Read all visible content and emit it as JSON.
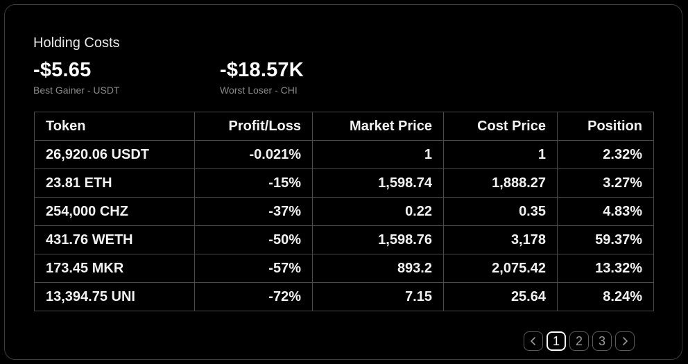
{
  "title": "Holding Costs",
  "stats": {
    "best": {
      "value": "-$5.65",
      "label": "Best Gainer - USDT"
    },
    "worst": {
      "value": "-$18.57K",
      "label": "Worst Loser - CHI"
    }
  },
  "table": {
    "headers": {
      "token": "Token",
      "profit_loss": "Profit/Loss",
      "market_price": "Market Price",
      "cost_price": "Cost Price",
      "position": "Position"
    },
    "rows": [
      {
        "token": "26,920.06 USDT",
        "profit_loss": "-0.021%",
        "market_price": "1",
        "cost_price": "1",
        "position": "2.32%"
      },
      {
        "token": "23.81 ETH",
        "profit_loss": "-15%",
        "market_price": "1,598.74",
        "cost_price": "1,888.27",
        "position": "3.27%"
      },
      {
        "token": "254,000 CHZ",
        "profit_loss": "-37%",
        "market_price": "0.22",
        "cost_price": "0.35",
        "position": "4.83%"
      },
      {
        "token": "431.76 WETH",
        "profit_loss": "-50%",
        "market_price": "1,598.76",
        "cost_price": "3,178",
        "position": "59.37%"
      },
      {
        "token": "173.45 MKR",
        "profit_loss": "-57%",
        "market_price": "893.2",
        "cost_price": "2,075.42",
        "position": "13.32%"
      },
      {
        "token": "13,394.75 UNI",
        "profit_loss": "-72%",
        "market_price": "7.15",
        "cost_price": "25.64",
        "position": "8.24%"
      }
    ]
  },
  "pagination": {
    "prev_icon": "chevron-left-icon",
    "pages": [
      "1",
      "2",
      "3"
    ],
    "current": "1",
    "next_icon": "chevron-right-icon"
  },
  "colors": {
    "background": "#000000",
    "border": "#4a4a4a",
    "text": "#f2f2f2",
    "muted": "#8a8a8a"
  }
}
